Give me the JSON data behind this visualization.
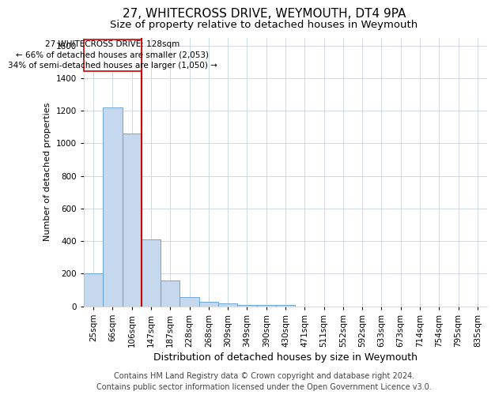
{
  "title": "27, WHITECROSS DRIVE, WEYMOUTH, DT4 9PA",
  "subtitle": "Size of property relative to detached houses in Weymouth",
  "xlabel": "Distribution of detached houses by size in Weymouth",
  "ylabel": "Number of detached properties",
  "categories": [
    "25sqm",
    "66sqm",
    "106sqm",
    "147sqm",
    "187sqm",
    "228sqm",
    "268sqm",
    "309sqm",
    "349sqm",
    "390sqm",
    "430sqm",
    "471sqm",
    "511sqm",
    "552sqm",
    "592sqm",
    "633sqm",
    "673sqm",
    "714sqm",
    "754sqm",
    "795sqm",
    "835sqm"
  ],
  "values": [
    200,
    1220,
    1060,
    410,
    160,
    55,
    25,
    15,
    8,
    5,
    5,
    0,
    0,
    0,
    0,
    0,
    0,
    0,
    0,
    0,
    0
  ],
  "bar_color": "#c5d8ed",
  "bar_edge_color": "#5b9bd5",
  "vline_x": 2.5,
  "vline_color": "#cc0000",
  "annotation_text": "27 WHITECROSS DRIVE: 128sqm\n← 66% of detached houses are smaller (2,053)\n34% of semi-detached houses are larger (1,050) →",
  "annotation_box_color": "#cc0000",
  "ylim": [
    0,
    1650
  ],
  "yticks": [
    0,
    200,
    400,
    600,
    800,
    1000,
    1200,
    1400,
    1600
  ],
  "footer": "Contains HM Land Registry data © Crown copyright and database right 2024.\nContains public sector information licensed under the Open Government Licence v3.0.",
  "bg_color": "#ffffff",
  "grid_color": "#d0d8e8",
  "title_fontsize": 11,
  "subtitle_fontsize": 9.5,
  "xlabel_fontsize": 9,
  "ylabel_fontsize": 8,
  "footer_fontsize": 7,
  "tick_fontsize": 7.5,
  "ann_fontsize": 7.5
}
